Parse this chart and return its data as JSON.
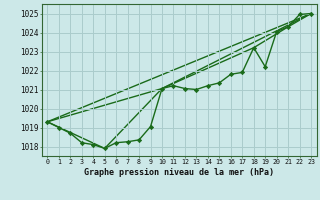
{
  "title": "Graphe pression niveau de la mer (hPa)",
  "bg_color": "#cce8e8",
  "grid_color": "#aacccc",
  "line_color": "#1a6b1a",
  "xlim": [
    -0.5,
    23.5
  ],
  "ylim": [
    1017.5,
    1025.5
  ],
  "yticks": [
    1018,
    1019,
    1020,
    1021,
    1022,
    1023,
    1024,
    1025
  ],
  "xticks": [
    0,
    1,
    2,
    3,
    4,
    5,
    6,
    7,
    8,
    9,
    10,
    11,
    12,
    13,
    14,
    15,
    16,
    17,
    18,
    19,
    20,
    21,
    22,
    23
  ],
  "main_x": [
    0,
    1,
    2,
    3,
    4,
    5,
    6,
    7,
    8,
    9,
    10,
    11,
    12,
    13,
    14,
    15,
    16,
    17,
    18,
    19,
    20,
    21,
    22,
    23
  ],
  "main_y": [
    1019.3,
    1019.0,
    1018.7,
    1018.2,
    1018.1,
    1017.9,
    1018.2,
    1018.25,
    1018.35,
    1019.05,
    1021.05,
    1021.2,
    1021.05,
    1021.0,
    1021.2,
    1021.35,
    1021.8,
    1021.9,
    1023.2,
    1022.2,
    1024.05,
    1024.3,
    1024.95,
    1025.0
  ],
  "line1_x": [
    0,
    23
  ],
  "line1_y": [
    1019.3,
    1025.0
  ],
  "line2_x": [
    0,
    5,
    10,
    23
  ],
  "line2_y": [
    1019.3,
    1017.9,
    1021.05,
    1025.0
  ],
  "line3_x": [
    0,
    10,
    18,
    21,
    23
  ],
  "line3_y": [
    1019.3,
    1021.05,
    1023.2,
    1024.3,
    1025.0
  ]
}
